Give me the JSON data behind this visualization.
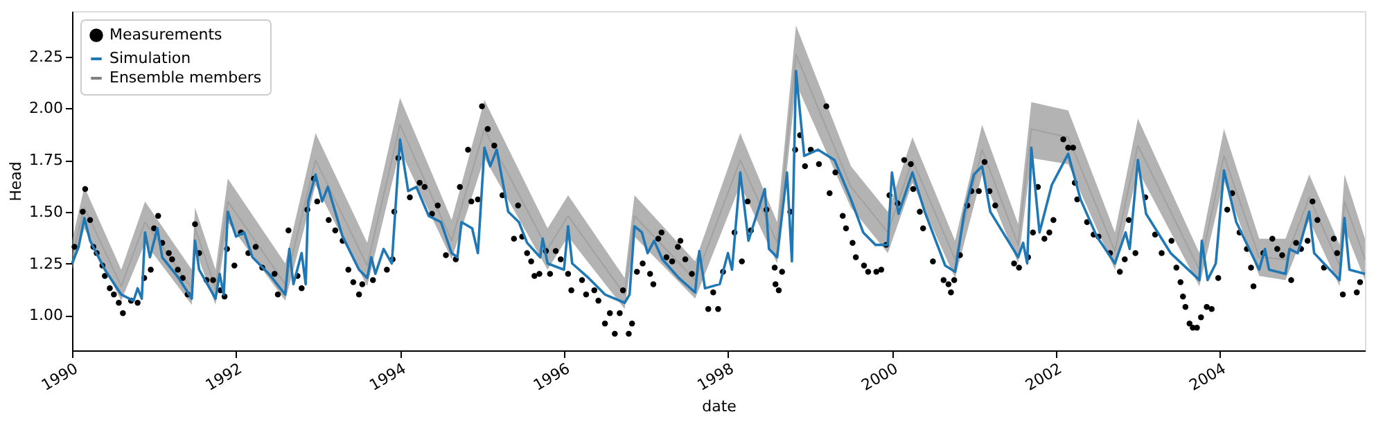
{
  "chart_data": {
    "type": "line",
    "xlabel": "date",
    "ylabel": "Head",
    "xlim": [
      1990,
      2005.77
    ],
    "xticks": [
      1990,
      1992,
      1994,
      1996,
      1998,
      2000,
      2002,
      2004
    ],
    "ylim": [
      0.83,
      2.47
    ],
    "yticks": [
      {
        "value": 1.0,
        "label": "1.00"
      },
      {
        "value": 1.25,
        "label": "1.25"
      },
      {
        "value": 1.5,
        "label": "1.50"
      },
      {
        "value": 1.75,
        "label": "1.75"
      },
      {
        "value": 2.0,
        "label": "2.00"
      },
      {
        "value": 2.25,
        "label": "2.25"
      }
    ],
    "grid": false,
    "legend": "top left",
    "series": [
      {
        "name": "Measurements",
        "type": "scatter",
        "marker": "circle",
        "color": "#000000",
        "x": [
          1990.03,
          1990.13,
          1990.16,
          1990.22,
          1990.26,
          1990.3,
          1990.37,
          1990.4,
          1990.46,
          1990.51,
          1990.57,
          1990.62,
          1990.72,
          1990.8,
          1990.88,
          1990.96,
          1991.0,
          1991.05,
          1991.1,
          1991.18,
          1991.22,
          1991.29,
          1991.35,
          1991.41,
          1991.5,
          1991.55,
          1991.64,
          1991.72,
          1991.81,
          1991.86,
          1991.89,
          1991.98,
          1992.06,
          1992.15,
          1992.24,
          1992.32,
          1992.47,
          1992.51,
          1992.64,
          1992.75,
          1992.8,
          1992.87,
          1992.95,
          1992.99,
          1993.13,
          1993.21,
          1993.3,
          1993.37,
          1993.43,
          1993.5,
          1993.54,
          1993.67,
          1993.84,
          1993.91,
          1993.93,
          1993.98,
          1994.12,
          1994.24,
          1994.3,
          1994.39,
          1994.46,
          1994.56,
          1994.68,
          1994.73,
          1994.83,
          1994.87,
          1994.95,
          1995.0,
          1995.07,
          1995.15,
          1995.25,
          1995.39,
          1995.44,
          1995.49,
          1995.55,
          1995.6,
          1995.64,
          1995.7,
          1995.78,
          1995.83,
          1995.9,
          1995.96,
          1996.05,
          1996.09,
          1996.22,
          1996.27,
          1996.37,
          1996.42,
          1996.5,
          1996.56,
          1996.62,
          1996.68,
          1996.72,
          1996.79,
          1996.83,
          1996.89,
          1996.96,
          1997.05,
          1997.09,
          1997.15,
          1997.19,
          1997.25,
          1997.32,
          1997.39,
          1997.42,
          1997.48,
          1997.56,
          1997.76,
          1997.82,
          1997.88,
          1997.94,
          1998.08,
          1998.17,
          1998.24,
          1998.28,
          1998.47,
          1998.57,
          1998.58,
          1998.62,
          1998.66,
          1998.76,
          1998.82,
          1998.88,
          1998.94,
          1999.01,
          1999.11,
          1999.2,
          1999.24,
          1999.31,
          1999.4,
          1999.44,
          1999.52,
          1999.56,
          1999.66,
          1999.71,
          1999.81,
          1999.87,
          1999.93,
          1999.97,
          2000.07,
          2000.15,
          2000.23,
          2000.26,
          2000.34,
          2000.38,
          2000.5,
          2000.63,
          2000.69,
          2000.72,
          2000.76,
          2000.83,
          2000.92,
          2000.97,
          2001.06,
          2001.13,
          2001.19,
          2001.26,
          2001.49,
          2001.55,
          2001.66,
          2001.72,
          2001.78,
          2001.86,
          2001.92,
          2001.97,
          2002.09,
          2002.15,
          2002.21,
          2002.23,
          2002.26,
          2002.38,
          2002.46,
          2002.52,
          2002.66,
          2002.78,
          2002.84,
          2002.89,
          2002.97,
          2003.09,
          2003.21,
          2003.29,
          2003.41,
          2003.47,
          2003.52,
          2003.55,
          2003.58,
          2003.63,
          2003.67,
          2003.72,
          2003.77,
          2003.84,
          2003.9,
          2003.98,
          2004.09,
          2004.15,
          2004.24,
          2004.33,
          2004.38,
          2004.41,
          2004.53,
          2004.64,
          2004.7,
          2004.76,
          2004.87,
          2004.93,
          2004.99,
          2005.07,
          2005.13,
          2005.19,
          2005.27,
          2005.39,
          2005.43,
          2005.5,
          2005.67,
          2005.71
        ],
        "values": [
          1.33,
          1.5,
          1.61,
          1.46,
          1.33,
          1.3,
          1.24,
          1.19,
          1.13,
          1.1,
          1.06,
          1.01,
          1.07,
          1.06,
          1.18,
          1.22,
          1.42,
          1.48,
          1.35,
          1.3,
          1.27,
          1.22,
          1.18,
          1.1,
          1.44,
          1.3,
          1.17,
          1.17,
          1.12,
          1.09,
          1.32,
          1.24,
          1.4,
          1.3,
          1.33,
          1.23,
          1.2,
          1.1,
          1.41,
          1.19,
          1.13,
          1.51,
          1.66,
          1.55,
          1.46,
          1.41,
          1.36,
          1.22,
          1.16,
          1.1,
          1.15,
          1.17,
          1.22,
          1.27,
          1.5,
          1.76,
          1.57,
          1.64,
          1.62,
          1.49,
          1.53,
          1.29,
          1.27,
          1.62,
          1.8,
          1.55,
          1.56,
          2.01,
          1.9,
          1.82,
          1.58,
          1.37,
          1.53,
          1.38,
          1.3,
          1.26,
          1.19,
          1.2,
          1.31,
          1.2,
          1.31,
          1.27,
          1.2,
          1.12,
          1.17,
          1.1,
          1.12,
          1.07,
          0.96,
          1.01,
          0.91,
          1.01,
          1.12,
          0.91,
          0.96,
          1.21,
          1.25,
          1.2,
          1.15,
          1.37,
          1.4,
          1.28,
          1.26,
          1.33,
          1.36,
          1.27,
          1.2,
          1.03,
          1.11,
          1.03,
          1.21,
          1.4,
          1.26,
          1.55,
          1.41,
          1.51,
          1.23,
          1.15,
          1.12,
          1.21,
          1.5,
          1.8,
          1.87,
          1.72,
          1.8,
          1.73,
          2.01,
          1.59,
          1.69,
          1.48,
          1.42,
          1.35,
          1.28,
          1.24,
          1.21,
          1.21,
          1.22,
          1.34,
          1.58,
          1.54,
          1.75,
          1.73,
          1.61,
          1.5,
          1.42,
          1.26,
          1.17,
          1.15,
          1.11,
          1.17,
          1.29,
          1.53,
          1.6,
          1.6,
          1.74,
          1.6,
          1.53,
          1.25,
          1.23,
          1.28,
          1.4,
          1.62,
          1.37,
          1.4,
          1.46,
          1.85,
          1.81,
          1.81,
          1.64,
          1.56,
          1.45,
          1.39,
          1.38,
          1.3,
          1.21,
          1.27,
          1.46,
          1.3,
          1.57,
          1.39,
          1.3,
          1.36,
          1.23,
          1.16,
          1.09,
          1.04,
          0.96,
          0.94,
          0.94,
          0.99,
          1.04,
          1.03,
          1.18,
          1.51,
          1.59,
          1.4,
          1.32,
          1.23,
          1.14,
          1.3,
          1.37,
          1.32,
          1.29,
          1.17,
          1.35,
          1.32,
          1.36,
          1.55,
          1.46,
          1.23,
          1.37,
          1.3,
          1.1,
          1.11,
          1.16
        ]
      },
      {
        "name": "Ensemble members",
        "color": "#808080",
        "x": [
          1990.0,
          1990.15,
          1990.6,
          1990.89,
          1991.46,
          1991.5,
          1991.75,
          1991.9,
          1992.6,
          1992.97,
          1993.6,
          1994.0,
          1994.63,
          1995.03,
          1995.8,
          1996.05,
          1996.74,
          1996.86,
          1997.6,
          1998.15,
          1998.6,
          1998.83,
          1999.5,
          1999.95,
          2000.25,
          2000.77,
          2001.1,
          2001.54,
          2001.7,
          2002.15,
          2002.72,
          2003.0,
          2003.75,
          2004.05,
          2004.48,
          2004.8,
          2005.09,
          2005.46,
          2005.52,
          2005.77
        ],
        "lower": [
          1.22,
          1.42,
          1.07,
          1.35,
          1.05,
          1.32,
          1.05,
          1.45,
          1.07,
          1.63,
          1.14,
          1.8,
          1.27,
          1.76,
          1.22,
          1.38,
          1.03,
          1.38,
          1.08,
          1.63,
          1.25,
          2.12,
          1.52,
          1.3,
          1.64,
          1.18,
          1.68,
          1.25,
          1.76,
          1.73,
          1.22,
          1.7,
          1.14,
          1.65,
          1.19,
          1.17,
          1.46,
          1.14,
          1.42,
          1.17
        ],
        "values": [
          1.28,
          1.52,
          1.14,
          1.45,
          1.13,
          1.42,
          1.13,
          1.55,
          1.15,
          1.75,
          1.24,
          1.92,
          1.36,
          1.9,
          1.32,
          1.48,
          1.1,
          1.48,
          1.17,
          1.75,
          1.35,
          2.26,
          1.62,
          1.4,
          1.75,
          1.27,
          1.8,
          1.34,
          1.9,
          1.86,
          1.31,
          1.82,
          1.22,
          1.77,
          1.28,
          1.27,
          1.57,
          1.24,
          1.55,
          1.27
        ],
        "upper": [
          1.36,
          1.62,
          1.22,
          1.55,
          1.22,
          1.52,
          1.22,
          1.66,
          1.25,
          1.88,
          1.35,
          2.05,
          1.46,
          2.04,
          1.42,
          1.58,
          1.18,
          1.58,
          1.26,
          1.88,
          1.45,
          2.4,
          1.72,
          1.5,
          1.86,
          1.36,
          1.92,
          1.44,
          2.03,
          1.99,
          1.4,
          1.95,
          1.3,
          1.9,
          1.37,
          1.37,
          1.68,
          1.34,
          1.68,
          1.37
        ]
      },
      {
        "name": "Simulation",
        "color": "#1f77b4",
        "x": [
          1990.0,
          1990.08,
          1990.15,
          1990.22,
          1990.4,
          1990.6,
          1990.75,
          1990.8,
          1990.85,
          1990.89,
          1990.95,
          1991.04,
          1991.1,
          1991.3,
          1991.46,
          1991.5,
          1991.55,
          1991.75,
          1991.8,
          1991.85,
          1991.9,
          1992.0,
          1992.1,
          1992.2,
          1992.4,
          1992.6,
          1992.65,
          1992.7,
          1992.8,
          1992.85,
          1992.88,
          1992.97,
          1993.05,
          1993.12,
          1993.3,
          1993.5,
          1993.6,
          1993.65,
          1993.7,
          1993.8,
          1993.9,
          1994.0,
          1994.1,
          1994.2,
          1994.35,
          1994.5,
          1994.63,
          1994.7,
          1994.75,
          1994.88,
          1994.95,
          1995.03,
          1995.1,
          1995.18,
          1995.32,
          1995.45,
          1995.55,
          1995.71,
          1995.74,
          1995.8,
          1996.0,
          1996.05,
          1996.1,
          1996.3,
          1996.5,
          1996.74,
          1996.8,
          1996.86,
          1996.95,
          1997.02,
          1997.1,
          1997.2,
          1997.4,
          1997.6,
          1997.65,
          1997.72,
          1997.9,
          1998.0,
          1998.05,
          1998.15,
          1998.25,
          1998.45,
          1998.5,
          1998.6,
          1998.72,
          1998.78,
          1998.83,
          1998.93,
          1999.1,
          1999.3,
          1999.5,
          1999.65,
          1999.8,
          1999.95,
          2000.0,
          2000.08,
          2000.25,
          2000.4,
          2000.65,
          2000.77,
          2000.88,
          2001.0,
          2001.1,
          2001.2,
          2001.54,
          2001.6,
          2001.65,
          2001.7,
          2001.8,
          2001.95,
          2002.15,
          2002.3,
          2002.5,
          2002.72,
          2002.85,
          2002.9,
          2003.0,
          2003.1,
          2003.4,
          2003.75,
          2003.78,
          2003.85,
          2003.95,
          2004.05,
          2004.2,
          2004.48,
          2004.55,
          2004.6,
          2004.8,
          2004.85,
          2004.95,
          2005.09,
          2005.15,
          2005.46,
          2005.52,
          2005.58,
          2005.77
        ],
        "values": [
          1.25,
          1.33,
          1.47,
          1.36,
          1.22,
          1.1,
          1.07,
          1.13,
          1.08,
          1.4,
          1.28,
          1.42,
          1.28,
          1.18,
          1.08,
          1.36,
          1.22,
          1.08,
          1.2,
          1.1,
          1.5,
          1.38,
          1.4,
          1.28,
          1.2,
          1.1,
          1.32,
          1.15,
          1.3,
          1.15,
          1.55,
          1.68,
          1.55,
          1.62,
          1.38,
          1.22,
          1.18,
          1.28,
          1.2,
          1.32,
          1.25,
          1.85,
          1.6,
          1.62,
          1.48,
          1.45,
          1.3,
          1.28,
          1.45,
          1.42,
          1.3,
          1.81,
          1.72,
          1.8,
          1.5,
          1.45,
          1.35,
          1.28,
          1.37,
          1.25,
          1.22,
          1.43,
          1.25,
          1.18,
          1.1,
          1.06,
          1.1,
          1.43,
          1.4,
          1.3,
          1.36,
          1.27,
          1.18,
          1.11,
          1.31,
          1.13,
          1.15,
          1.3,
          1.22,
          1.69,
          1.36,
          1.61,
          1.32,
          1.28,
          1.69,
          1.26,
          2.18,
          1.77,
          1.8,
          1.75,
          1.56,
          1.4,
          1.34,
          1.34,
          1.69,
          1.49,
          1.69,
          1.5,
          1.24,
          1.21,
          1.49,
          1.68,
          1.72,
          1.5,
          1.28,
          1.35,
          1.25,
          1.81,
          1.4,
          1.63,
          1.78,
          1.56,
          1.38,
          1.25,
          1.4,
          1.32,
          1.75,
          1.49,
          1.3,
          1.17,
          1.36,
          1.17,
          1.25,
          1.7,
          1.45,
          1.22,
          1.32,
          1.22,
          1.2,
          1.32,
          1.3,
          1.5,
          1.3,
          1.17,
          1.47,
          1.22,
          1.2
        ]
      }
    ]
  }
}
